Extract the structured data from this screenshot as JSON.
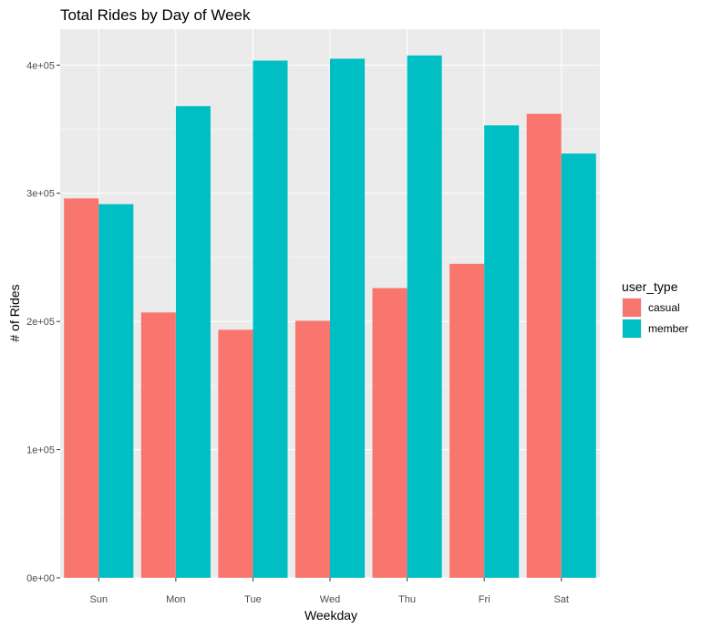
{
  "chart_data": {
    "type": "bar",
    "title": "Total Rides by Day of Week",
    "xlabel": "Weekday",
    "ylabel": "# of Rides",
    "categories": [
      "Sun",
      "Mon",
      "Tue",
      "Wed",
      "Thu",
      "Fri",
      "Sat"
    ],
    "series": [
      {
        "name": "casual",
        "color": "#F8766D",
        "values": [
          296000,
          207000,
          193500,
          200500,
          226000,
          245000,
          362000
        ]
      },
      {
        "name": "member",
        "color": "#00BFC4",
        "values": [
          291500,
          368000,
          403500,
          405000,
          407500,
          353000,
          331000
        ]
      }
    ],
    "ylim": [
      0,
      428000
    ],
    "yticks": [
      0,
      100000,
      200000,
      300000,
      400000
    ],
    "ytick_labels": [
      "0e+00",
      "1e+05",
      "2e+05",
      "3e+05",
      "4e+05"
    ],
    "legend": {
      "title": "user_type",
      "position": "right"
    },
    "grid": true,
    "panel_background": "#EBEBEB"
  }
}
